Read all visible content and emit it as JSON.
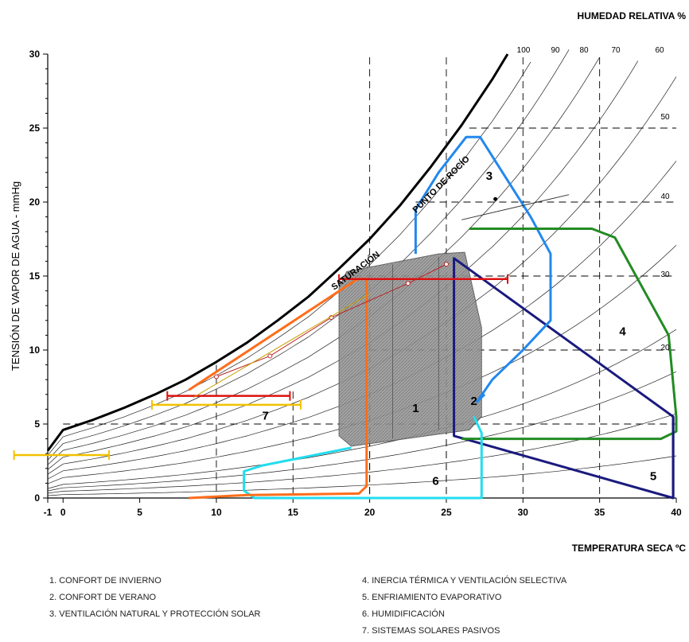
{
  "chart_data": {
    "type": "line",
    "title": "",
    "rh_title": "HUMEDAD RELATIVA  %",
    "xlabel": "TEMPERATURA SECA ºC",
    "ylabel": "TENSIÓN DE VAPOR DE AGUA - mmHg",
    "xlim": [
      -1,
      40
    ],
    "ylim": [
      0,
      30
    ],
    "xticks": [
      "-1",
      "0",
      "5",
      "10",
      "15",
      "20",
      "25",
      "30",
      "35",
      "40"
    ],
    "yticks": [
      "0",
      "5",
      "10",
      "15",
      "20",
      "25",
      "30"
    ],
    "rh_ticks": [
      "100",
      "90",
      "80",
      "70",
      "60",
      "50",
      "40",
      "30",
      "20"
    ],
    "curve_labels": {
      "saturation": "SATURACIÓN",
      "dew_point": "PUNTO DE ROCÍO"
    },
    "saturation_curve": {
      "x": [
        -1,
        0,
        2,
        4,
        6,
        8,
        10,
        12,
        14,
        16,
        18,
        20,
        22,
        24,
        26,
        28,
        29
      ],
      "y": [
        3.2,
        4.6,
        5.3,
        6.1,
        7.0,
        8.0,
        9.2,
        10.5,
        12.0,
        13.6,
        15.5,
        17.5,
        19.8,
        22.4,
        25.2,
        28.3,
        30.0
      ]
    },
    "zones": [
      {
        "id": "1",
        "name": "CONFORT DE INVIERNO",
        "color": "#8f8f8f",
        "x": [
          18,
          18.5,
          24.5,
          26.2,
          27.3,
          27.3,
          26.5,
          18.8,
          18
        ],
        "y": [
          14.2,
          15.3,
          16.5,
          16.6,
          11.5,
          5.5,
          4.6,
          3.5,
          4.2
        ]
      },
      {
        "id": "2",
        "name": "CONFORT DE VERANO",
        "color": "#1a1a7e",
        "x": [
          25.5,
          39.8,
          39.8,
          25.5
        ],
        "y": [
          16.2,
          5.5,
          0,
          4.2
        ]
      },
      {
        "id": "3",
        "name": "VENTILACIÓN NATURAL Y PROTECCIÓN SOLAR",
        "color": "#2288ee",
        "x": [
          23,
          23,
          24.5,
          26.3,
          27.2,
          30.5,
          31.8,
          31.8,
          30,
          28,
          27,
          27.5
        ],
        "y": [
          16.5,
          19.5,
          22,
          24.4,
          24.4,
          19,
          16.5,
          12,
          10,
          8,
          6.5,
          7
        ]
      },
      {
        "id": "4",
        "name": "INERCIA TÉRMICA Y VENTILACIÓN SELECTIVA",
        "color": "#228B22",
        "x": [
          26.5,
          34.5,
          36,
          39.5,
          40,
          40,
          39,
          26
        ],
        "y": [
          18.2,
          18.2,
          17.6,
          11,
          5.5,
          4.5,
          4,
          4
        ]
      },
      {
        "id": "5",
        "name": "ENFRIAMIENTO EVAPORATIVO",
        "color": "#1a1a7e",
        "x": [
          39.8,
          39.8
        ],
        "y": [
          5.5,
          0
        ]
      },
      {
        "id": "6",
        "name": "HUMIDIFICACIÓN",
        "color": "#22ddee",
        "x": [
          18.8,
          13,
          11.8,
          11.8,
          12.5,
          27.3,
          27.3,
          26.8
        ],
        "y": [
          3.4,
          2.2,
          1.8,
          0.5,
          0,
          0,
          4.4,
          5.5
        ]
      },
      {
        "id": "7",
        "name": "SISTEMAS SOLARES PASIVOS",
        "color": "#ff6d1a",
        "x": [
          8.2,
          19.2,
          19.8,
          19.8,
          19.3,
          12,
          8.2
        ],
        "y": [
          7.3,
          14.8,
          14.8,
          0.8,
          0.3,
          0.2,
          0
        ]
      }
    ],
    "data_ranges": [
      {
        "color": "#dd1111",
        "x": [
          18,
          29
        ],
        "y": 14.8
      },
      {
        "color": "#dd1111",
        "x": [
          6.8,
          14.8
        ],
        "y": 6.9
      },
      {
        "color": "#f2c200",
        "x": [
          5.8,
          15.5
        ],
        "y": 6.3
      },
      {
        "color": "#f2c200",
        "x": [
          -3.2,
          3
        ],
        "y": 2.9
      }
    ],
    "legend": [
      "1.  CONFORT DE INVIERNO",
      "2.  CONFORT DE VERANO",
      "3.  VENTILACIÓN NATURAL Y PROTECCIÓN SOLAR",
      "4.  INERCIA TÉRMICA Y VENTILACIÓN SELECTIVA",
      "5.  ENFRIAMIENTO EVAPORATIVO",
      "6.  HUMIDIFICACIÓN",
      "7.  SISTEMAS SOLARES PASIVOS"
    ],
    "zone_numbers": [
      "1",
      "2",
      "3",
      "4",
      "5",
      "6",
      "7"
    ]
  }
}
